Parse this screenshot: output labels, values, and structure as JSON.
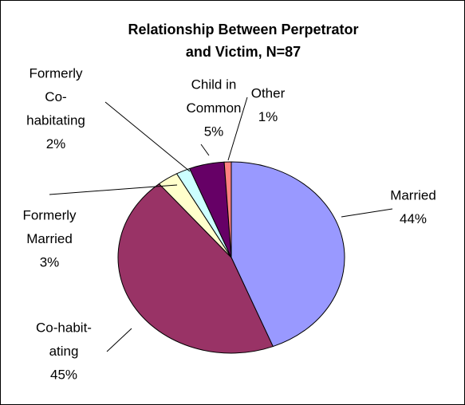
{
  "chart_data": {
    "type": "pie",
    "title": [
      "Relationship Between Perpetrator",
      "and Victim, N=87"
    ],
    "categories": [
      [
        "Married"
      ],
      [
        "Co-habit-",
        "ating"
      ],
      [
        "Formerly",
        "Married"
      ],
      [
        "Formerly",
        "Co-",
        "habitating"
      ],
      [
        "Child in",
        "Common"
      ],
      [
        "Other"
      ]
    ],
    "values": [
      44,
      45,
      3,
      2,
      5,
      1
    ],
    "value_labels": [
      "44%",
      "45%",
      "3%",
      "2%",
      "5%",
      "1%"
    ],
    "colors": [
      "#9999ff",
      "#993366",
      "#ffffcc",
      "#ccffff",
      "#660066",
      "#ff8080"
    ]
  }
}
